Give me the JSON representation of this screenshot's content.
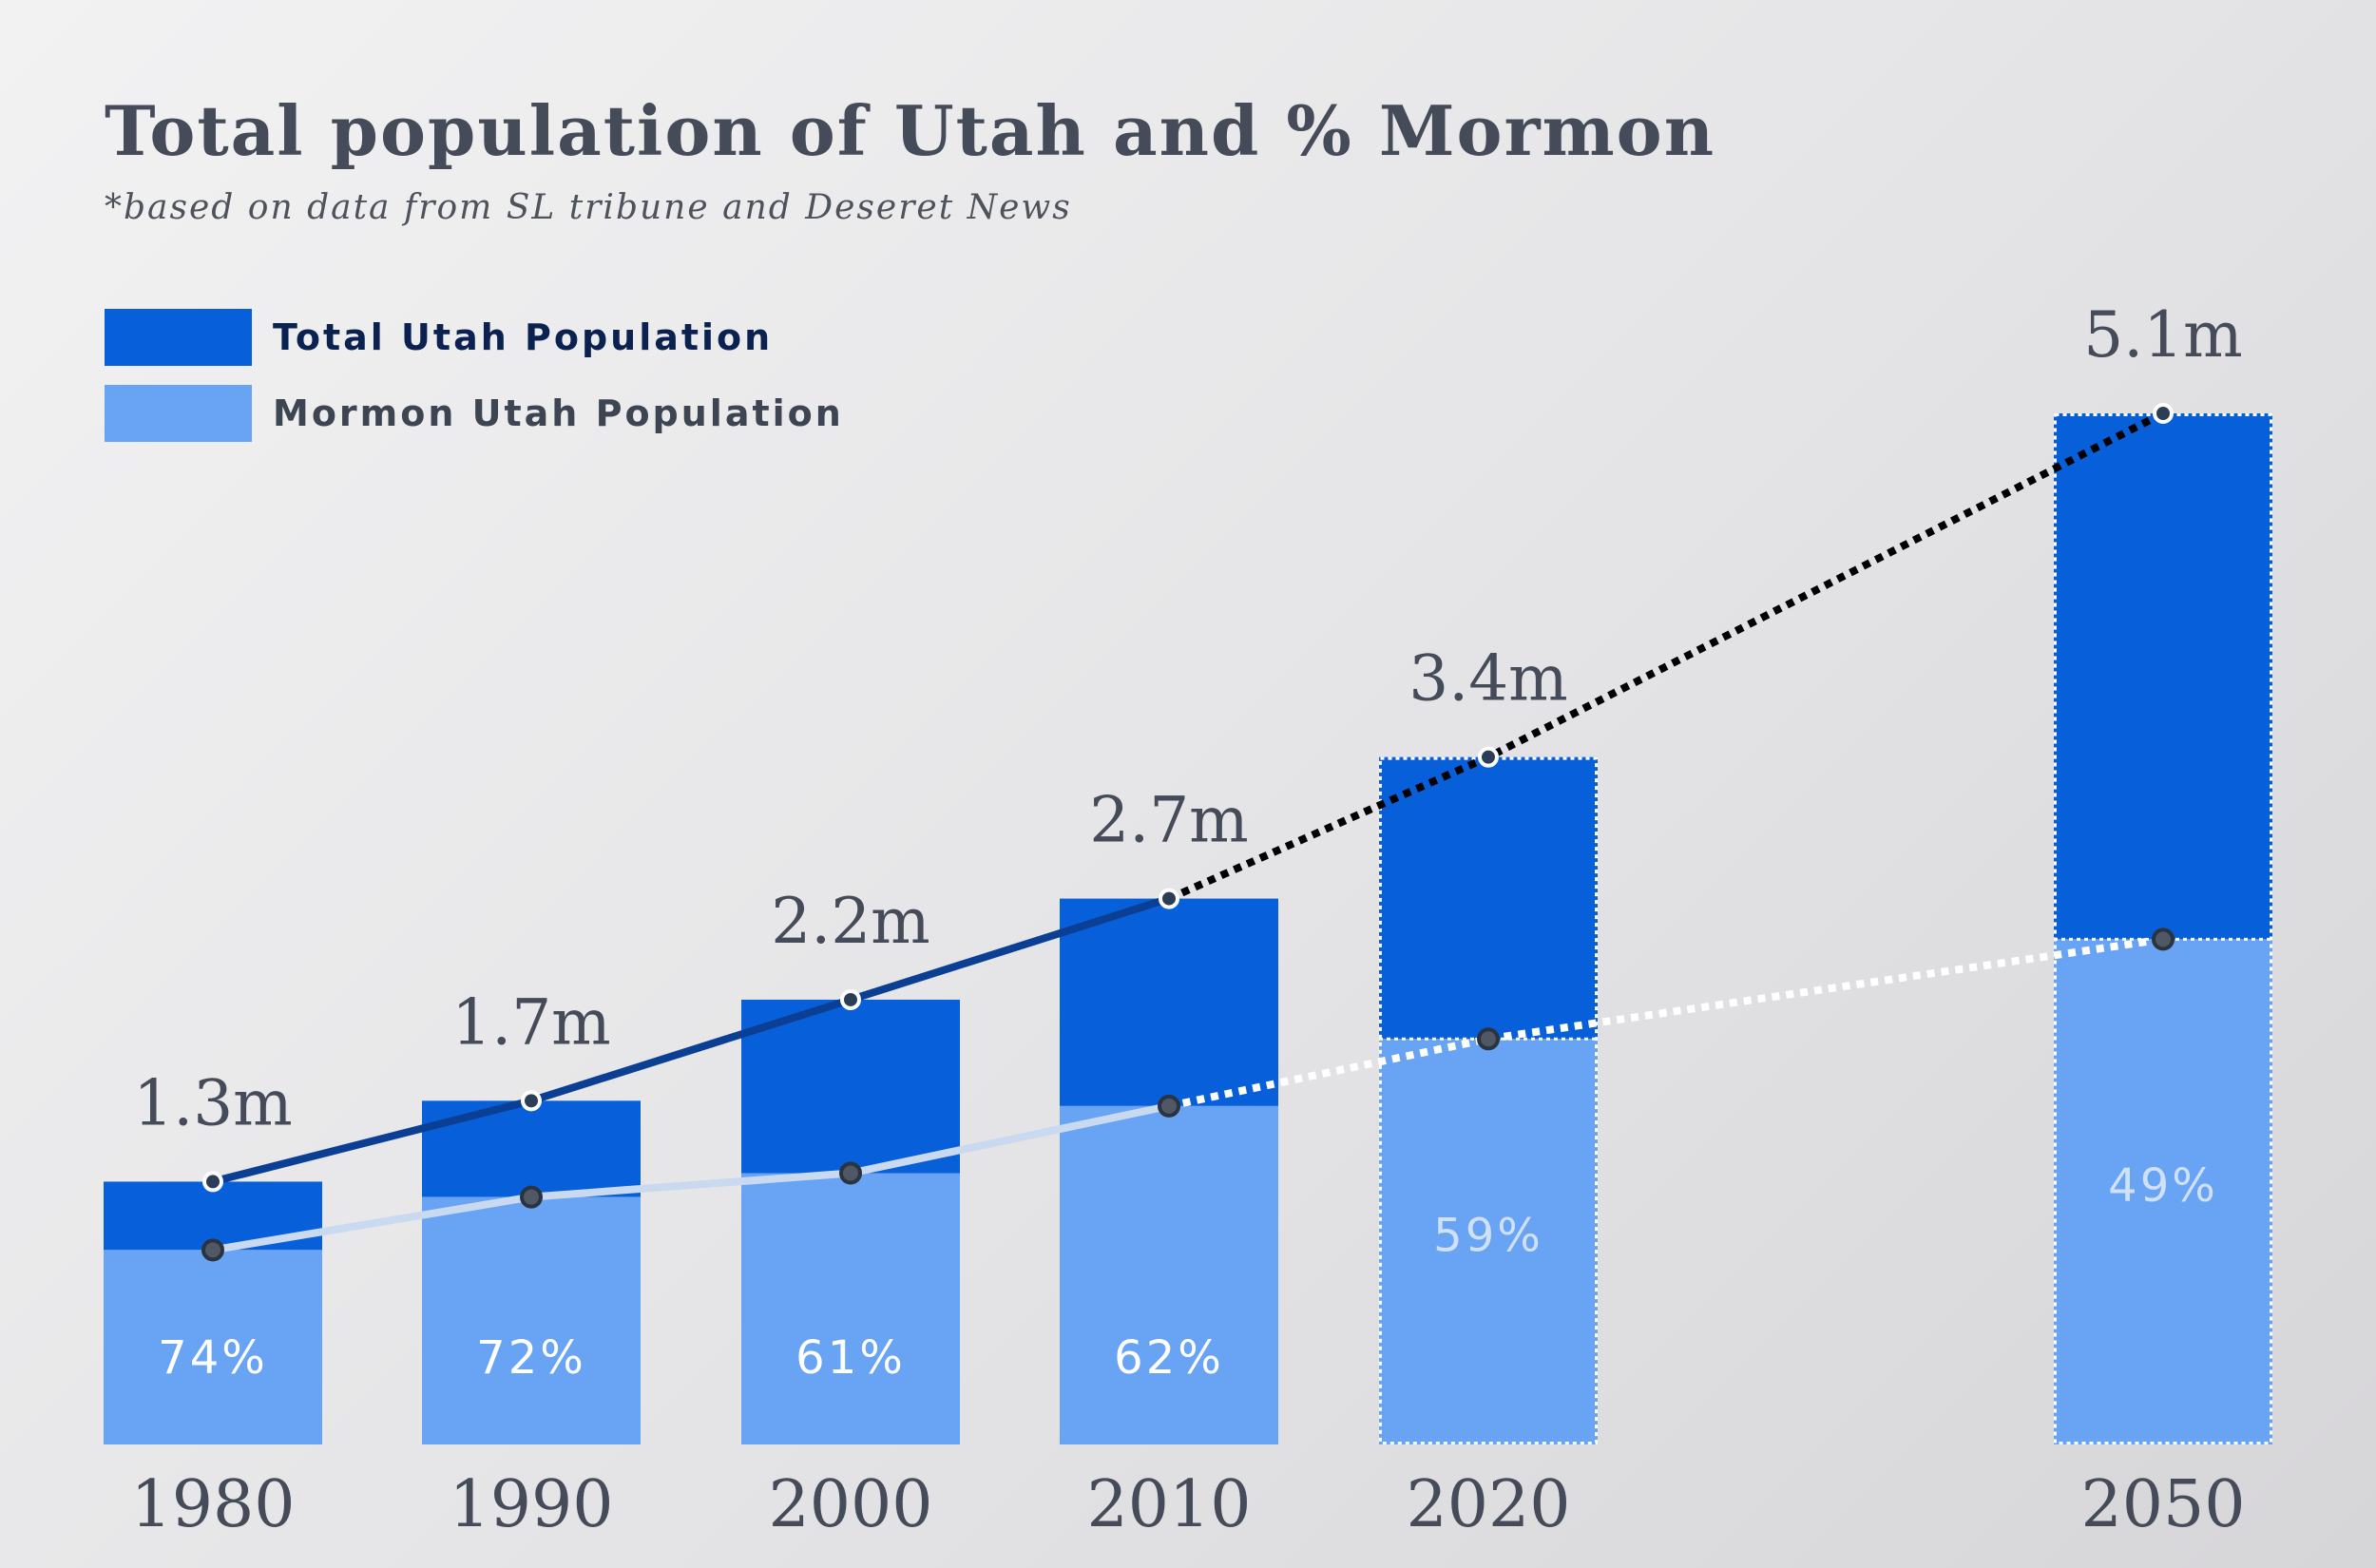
{
  "chart_data": {
    "type": "bar",
    "title": "Total population of Utah and % Mormon",
    "subtitle": "*based on data from SL tribune and Deseret News",
    "categories": [
      "1980",
      "1990",
      "2000",
      "2010",
      "2020",
      "2050"
    ],
    "series": [
      {
        "name": "Total Utah Population",
        "values": [
          1.3,
          1.7,
          2.2,
          2.7,
          3.4,
          5.1
        ],
        "color": "#0760d9"
      },
      {
        "name": "Mormon Utah Population",
        "values": [
          0.962,
          1.224,
          1.342,
          1.674,
          2.006,
          2.499
        ],
        "color": "#68a3f4"
      }
    ],
    "total_labels": [
      "1.3m",
      "1.7m",
      "2.2m",
      "2.7m",
      "3.4m",
      "5.1m"
    ],
    "percent_labels": [
      "74%",
      "72%",
      "61%",
      "62%",
      "59%",
      "49%"
    ],
    "projected": [
      false,
      false,
      false,
      false,
      true,
      true
    ],
    "ylim": [
      0,
      5.1
    ],
    "grid": false,
    "legend_position": "top-left",
    "colors": {
      "total_line": "#0a3f94",
      "mormon_line": "#c9d9f0",
      "projection_total_line": "#000000",
      "projection_mormon_line": "#ffffff",
      "text": "#454b58"
    }
  }
}
